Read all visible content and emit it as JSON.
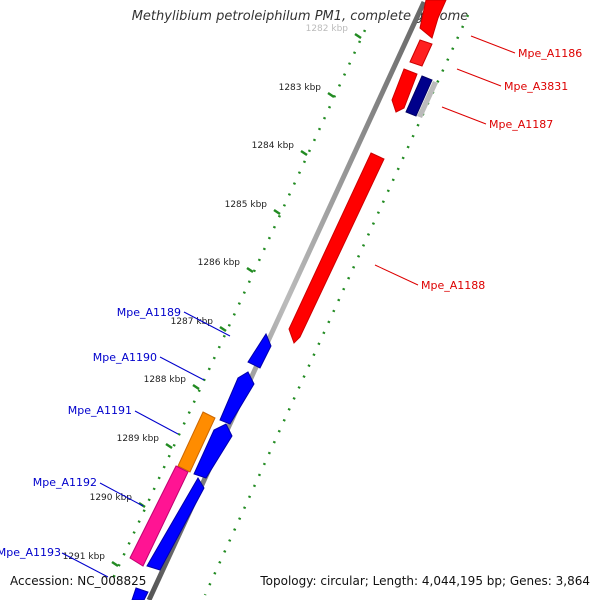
{
  "title": "Methylibium petroleiphilum PM1, complete genome",
  "accession_label": "Accession: NC_008825",
  "topology_label": "Topology: circular; Length: 4,044,195 bp; Genes: 3,864",
  "colors": {
    "forward_gene": "#ff0000",
    "reverse_gene": "#0000ff",
    "highlight_gene": "#ff8c00",
    "pink_gene": "#ff1493",
    "backbone": "#888888",
    "tick": "#228b22",
    "forward_label": "#dd0000",
    "reverse_label": "#0000cc"
  },
  "ticks": [
    {
      "label": "1282 kbp"
    },
    {
      "label": "1283 kbp"
    },
    {
      "label": "1284 kbp"
    },
    {
      "label": "1285 kbp"
    },
    {
      "label": "1286 kbp"
    },
    {
      "label": "1287 kbp"
    },
    {
      "label": "1288 kbp"
    },
    {
      "label": "1289 kbp"
    },
    {
      "label": "1290 kbp"
    },
    {
      "label": "1291 kbp"
    }
  ],
  "forward_genes": [
    {
      "name": "Mpe_A1186"
    },
    {
      "name": "Mpe_A3831"
    },
    {
      "name": "Mpe_A1187"
    },
    {
      "name": "Mpe_A1188"
    }
  ],
  "reverse_genes": [
    {
      "name": "Mpe_A1189"
    },
    {
      "name": "Mpe_A1190"
    },
    {
      "name": "Mpe_A1191"
    },
    {
      "name": "Mpe_A1192"
    },
    {
      "name": "Mpe_A1193"
    }
  ]
}
